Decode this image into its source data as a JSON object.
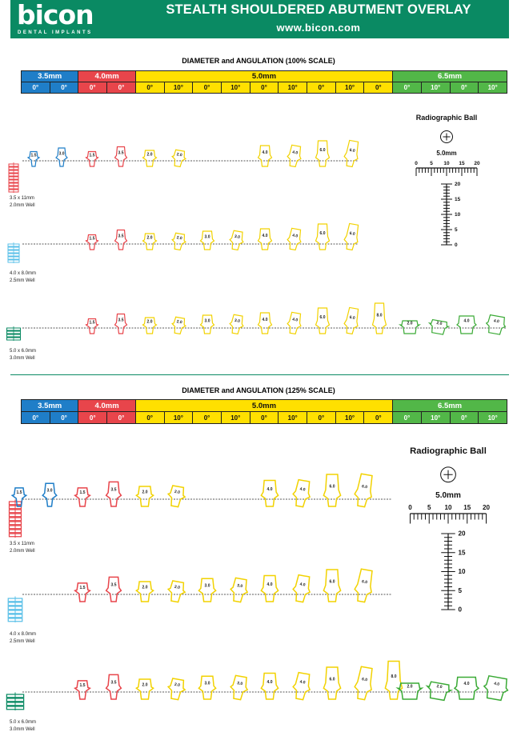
{
  "header": {
    "brand": "bicon",
    "brand_tagline": "DENTAL IMPLANTS",
    "title": "STEALTH SHOULDERED ABUTMENT OVERLAY",
    "url": "www.bicon.com",
    "color": "#0a8a63"
  },
  "sections": [
    {
      "title": "DIAMETER and ANGULATION   (100% SCALE)",
      "diameters": [
        {
          "label": "3.5mm",
          "angles": [
            "0°",
            "0°"
          ],
          "color": "#1f7ec8"
        },
        {
          "label": "4.0mm",
          "angles": [
            "0°",
            "0°"
          ],
          "color": "#e8454b"
        },
        {
          "label": "5.0mm",
          "angles": [
            "0°",
            "10°",
            "0°",
            "10°",
            "0°",
            "10°",
            "0°",
            "10°",
            "0°"
          ],
          "color": "#ffe000"
        },
        {
          "label": "6.5mm",
          "angles": [
            "0°",
            "10°",
            "0°",
            "10°"
          ],
          "color": "#52b748"
        }
      ],
      "implants": [
        {
          "size": "3.5 x 11mm",
          "well": "2.0mm Well"
        },
        {
          "size": "4.0 x 8.0mm",
          "well": "2.5mm Well"
        },
        {
          "size": "5.0 x 6.0mm",
          "well": "3.0mm Well"
        }
      ],
      "rows": [
        [
          "1.5",
          "3.0",
          "1.5",
          "3.5",
          "2.0",
          "2.0",
          "4.0",
          "4.0",
          "6.0",
          "6.0"
        ],
        [
          "1.5",
          "3.5",
          "2.0",
          "2.0",
          "3.0",
          "3.0",
          "4.0",
          "4.0",
          "6.0",
          "6.0"
        ],
        [
          "1.5",
          "3.5",
          "2.0",
          "2.0",
          "3.0",
          "3.0",
          "4.0",
          "4.0",
          "6.0",
          "6.0",
          "8.0",
          "2.0",
          "2.0",
          "4.0",
          "4.0"
        ]
      ],
      "radiographic": {
        "title": "Radiographic Ball",
        "size": "5.0mm",
        "h_ticks": [
          "0",
          "5",
          "10",
          "15",
          "20"
        ],
        "v_ticks": [
          "20",
          "15",
          "10",
          "5",
          "0"
        ]
      }
    },
    {
      "title": "DIAMETER and ANGULATION   (125% SCALE)",
      "diameters": [
        {
          "label": "3.5mm",
          "angles": [
            "0°",
            "0°"
          ],
          "color": "#1f7ec8"
        },
        {
          "label": "4.0mm",
          "angles": [
            "0°",
            "0°"
          ],
          "color": "#e8454b"
        },
        {
          "label": "5.0mm",
          "angles": [
            "0°",
            "10°",
            "0°",
            "10°",
            "0°",
            "10°",
            "0°",
            "10°",
            "0°"
          ],
          "color": "#ffe000"
        },
        {
          "label": "6.5mm",
          "angles": [
            "0°",
            "10°",
            "0°",
            "10°"
          ],
          "color": "#52b748"
        }
      ],
      "implants": [
        {
          "size": "3.5 x 11mm",
          "well": "2.0mm Well"
        },
        {
          "size": "4.0 x 8.0mm",
          "well": "2.5mm Well"
        },
        {
          "size": "5.0 x 6.0mm",
          "well": "3.0mm Well"
        }
      ],
      "rows": [
        [
          "1.5",
          "3.0",
          "1.5",
          "3.5",
          "2.0",
          "2.0",
          "4.0",
          "4.0",
          "6.0",
          "6.0"
        ],
        [
          "1.5",
          "3.5",
          "2.0",
          "2.0",
          "3.0",
          "3.0",
          "4.0",
          "4.0",
          "6.0",
          "6.0"
        ],
        [
          "1.5",
          "3.5",
          "2.0",
          "2.0",
          "3.0",
          "3.0",
          "4.0",
          "4.0",
          "6.0",
          "6.0",
          "8.0",
          "2.0",
          "2.0",
          "4.0",
          "4.0"
        ]
      ],
      "radiographic": {
        "title": "Radiographic Ball",
        "size": "5.0mm",
        "h_ticks": [
          "0",
          "5",
          "10",
          "15",
          "20"
        ],
        "v_ticks": [
          "20",
          "15",
          "10",
          "5",
          "0"
        ]
      }
    }
  ]
}
